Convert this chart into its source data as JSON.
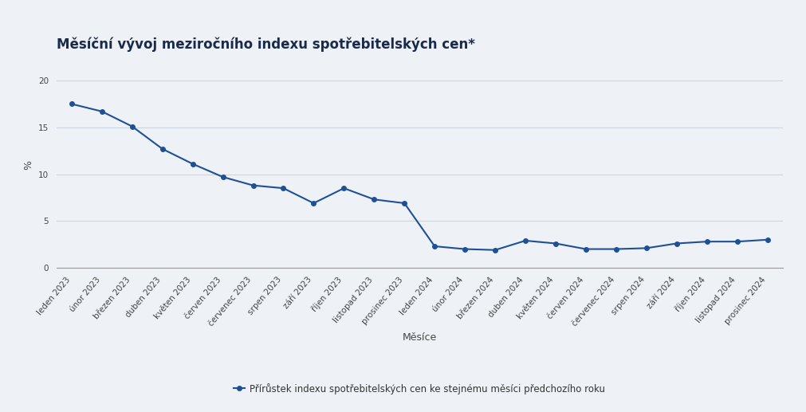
{
  "title": "Měsíční vývoj meziročního indexu spotřebitelských cen*",
  "xlabel": "Měsíce",
  "ylabel": "%",
  "legend_label": "Přírůstek indexu spotřebitelských cen ke stejnému měsíci předchozího roku",
  "categories": [
    "leden 2023",
    "únor 2023",
    "březen 2023",
    "duben 2023",
    "květen 2023",
    "červen 2023",
    "červenec 2023",
    "srpen 2023",
    "září 2023",
    "říjen 2023",
    "listopad 2023",
    "prosinec 2023",
    "leden 2024",
    "únor 2024",
    "březen 2024",
    "duben 2024",
    "květen 2024",
    "červen 2024",
    "červenec 2024",
    "srpen 2024",
    "září 2024",
    "říjen 2024",
    "listopad 2024",
    "prosinec 2024"
  ],
  "values": [
    17.5,
    16.7,
    15.1,
    12.7,
    11.1,
    9.7,
    8.8,
    8.5,
    6.9,
    8.5,
    7.3,
    6.9,
    2.3,
    2.0,
    1.9,
    2.9,
    2.6,
    2.0,
    2.0,
    2.1,
    2.6,
    2.8,
    2.8,
    3.0
  ],
  "line_color": "#1f5096",
  "marker": "o",
  "marker_size": 4,
  "line_width": 1.5,
  "ylim": [
    0,
    22
  ],
  "yticks": [
    0,
    5,
    10,
    15,
    20
  ],
  "background_color": "#eef2f7",
  "plot_bg_color": "#eef2f7",
  "grid_color": "#cdd5e0",
  "title_color": "#1a2b4a",
  "title_fontsize": 12,
  "axis_label_fontsize": 9,
  "tick_fontsize": 7.5,
  "legend_fontsize": 8.5
}
